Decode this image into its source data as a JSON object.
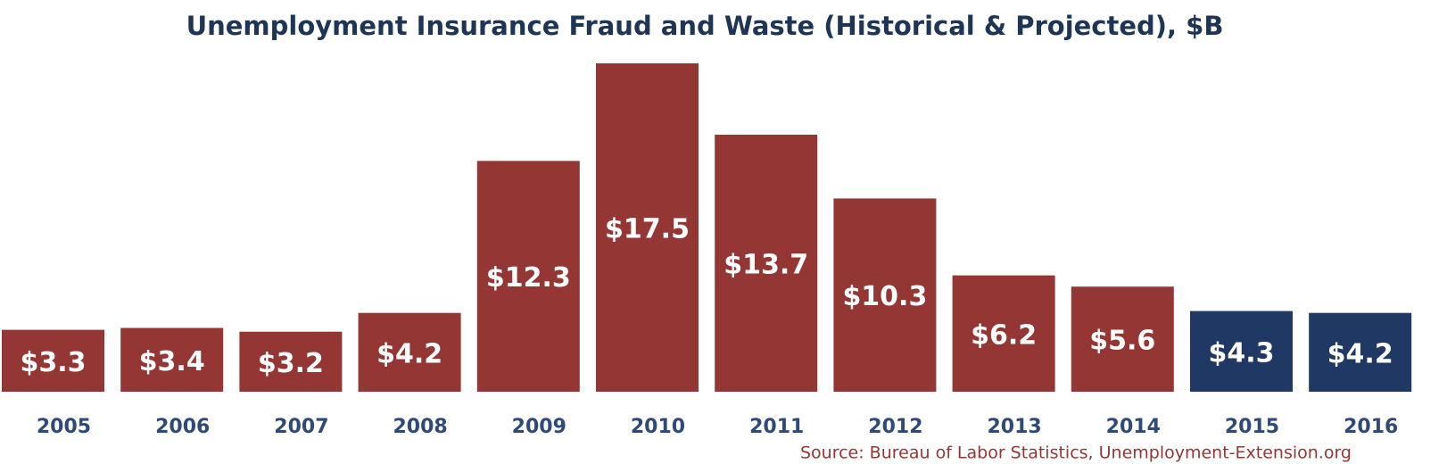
{
  "chart_data": {
    "type": "bar",
    "title": "Unemployment Insurance Fraud and Waste (Historical & Projected), $B",
    "categories": [
      "2005",
      "2006",
      "2007",
      "2008",
      "2009",
      "2010",
      "2011",
      "2012",
      "2013",
      "2014",
      "2015",
      "2016"
    ],
    "values": [
      3.3,
      3.4,
      3.2,
      4.2,
      12.3,
      17.5,
      13.7,
      10.3,
      6.2,
      5.6,
      4.3,
      4.2
    ],
    "value_labels": [
      "$3.3",
      "$3.4",
      "$3.2",
      "$4.2",
      "$12.3",
      "$17.5",
      "$13.7",
      "$10.3",
      "$6.2",
      "$5.6",
      "$4.3",
      "$4.2"
    ],
    "colors": [
      "#943634",
      "#943634",
      "#943634",
      "#943634",
      "#943634",
      "#943634",
      "#943634",
      "#943634",
      "#943634",
      "#943634",
      "#1f3864",
      "#1f3864"
    ],
    "source": "Source: Bureau of Labor Statistics, Unemployment-Extension.org"
  }
}
